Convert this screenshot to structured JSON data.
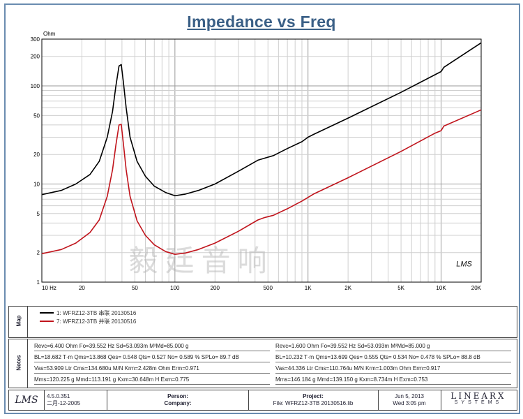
{
  "chart_data": {
    "type": "line",
    "title": "Impedance vs Freq",
    "y_unit": "Ohm",
    "x_scale": "log",
    "y_scale": "log",
    "xlim": [
      10,
      20000
    ],
    "ylim": [
      1,
      300
    ],
    "grid": true,
    "x_ticks": [
      {
        "value": 10,
        "label": "10 Hz"
      },
      {
        "value": 20,
        "label": "20"
      },
      {
        "value": 50,
        "label": "50"
      },
      {
        "value": 100,
        "label": "100"
      },
      {
        "value": 200,
        "label": "200"
      },
      {
        "value": 500,
        "label": "500"
      },
      {
        "value": 1000,
        "label": "1K"
      },
      {
        "value": 2000,
        "label": "2K"
      },
      {
        "value": 5000,
        "label": "5K"
      },
      {
        "value": 10000,
        "label": "10K"
      },
      {
        "value": 20000,
        "label": "20K"
      }
    ],
    "y_ticks": [
      {
        "value": 1,
        "label": "1"
      },
      {
        "value": 2,
        "label": "2"
      },
      {
        "value": 5,
        "label": "5"
      },
      {
        "value": 10,
        "label": "10"
      },
      {
        "value": 20,
        "label": "20"
      },
      {
        "value": 50,
        "label": "50"
      },
      {
        "value": 100,
        "label": "100"
      },
      {
        "value": 200,
        "label": "200"
      },
      {
        "value": 300,
        "label": "300"
      }
    ],
    "series": [
      {
        "name": "1: WFRZ12-3TB 串联 20130516",
        "color": "#000000",
        "points": [
          [
            10,
            7.8
          ],
          [
            14,
            8.6
          ],
          [
            18,
            10.0
          ],
          [
            23,
            12.5
          ],
          [
            27,
            17.0
          ],
          [
            31,
            30.0
          ],
          [
            34,
            55.0
          ],
          [
            36,
            100.0
          ],
          [
            38,
            160.0
          ],
          [
            39.5,
            165.0
          ],
          [
            41,
            110.0
          ],
          [
            43,
            60.0
          ],
          [
            46,
            30.0
          ],
          [
            52,
            17.0
          ],
          [
            60,
            12.0
          ],
          [
            70,
            9.5
          ],
          [
            85,
            8.2
          ],
          [
            100,
            7.6
          ],
          [
            120,
            7.9
          ],
          [
            150,
            8.6
          ],
          [
            200,
            10.0
          ],
          [
            300,
            13.5
          ],
          [
            420,
            17.5
          ],
          [
            470,
            18.3
          ],
          [
            550,
            19.5
          ],
          [
            700,
            23.0
          ],
          [
            900,
            27.0
          ],
          [
            1000,
            30.0
          ],
          [
            1100,
            32.0
          ],
          [
            2000,
            47.0
          ],
          [
            5000,
            86.0
          ],
          [
            9000,
            130.0
          ],
          [
            10000,
            140.0
          ],
          [
            10500,
            155.0
          ],
          [
            20000,
            275.0
          ]
        ]
      },
      {
        "name": "7: WFRZ12-3TB 并联 20130516",
        "color": "#c0141c",
        "points": [
          [
            10,
            1.95
          ],
          [
            14,
            2.15
          ],
          [
            18,
            2.5
          ],
          [
            23,
            3.2
          ],
          [
            27,
            4.3
          ],
          [
            31,
            7.5
          ],
          [
            34,
            14.0
          ],
          [
            36,
            25.0
          ],
          [
            38,
            40.0
          ],
          [
            39.5,
            40.5
          ],
          [
            41,
            26.0
          ],
          [
            43,
            14.0
          ],
          [
            46,
            7.5
          ],
          [
            52,
            4.2
          ],
          [
            60,
            3.0
          ],
          [
            70,
            2.4
          ],
          [
            85,
            2.05
          ],
          [
            100,
            1.92
          ],
          [
            120,
            1.98
          ],
          [
            150,
            2.15
          ],
          [
            200,
            2.5
          ],
          [
            300,
            3.3
          ],
          [
            420,
            4.3
          ],
          [
            470,
            4.55
          ],
          [
            550,
            4.8
          ],
          [
            700,
            5.6
          ],
          [
            900,
            6.7
          ],
          [
            1000,
            7.3
          ],
          [
            1100,
            7.9
          ],
          [
            2000,
            11.6
          ],
          [
            5000,
            21.5
          ],
          [
            9000,
            33.0
          ],
          [
            10000,
            35.0
          ],
          [
            10500,
            39.0
          ],
          [
            20000,
            57.0
          ]
        ]
      }
    ],
    "watermark": "毅廷音响",
    "corner_logo": "LMS"
  },
  "map": {
    "label": "Map",
    "entries": [
      {
        "text": "1: WFRZ12-3TB 串联 20130516",
        "color": "#000000"
      },
      {
        "text": "7: WFRZ12-3TB 并联 20130516",
        "color": "#c0141c"
      }
    ]
  },
  "notes": {
    "label": "Notes",
    "left": [
      "Revc=6.400 Ohm  Fo=39.552 Hz  Sd=53.093m M²Md=85.000 g",
      "BL=18.682 T·m  Qms=13.868  Qes= 0.548  Qts= 0.527  No= 0.589 %  SPLo= 89.7 dB",
      "Vas=53.909 Ltr  Cms=134.680u M/N  Krm=2.428m Ohm  Erm=0.971",
      "Mms=120.225 g  Mmd=113.191 g  Kxm=30.648m H  Exm=0.775"
    ],
    "right": [
      "Revc=1.600 Ohm  Fo=39.552 Hz  Sd=53.093m M²Md=85.000 g",
      "BL=10.232 T·m  Qms=13.699  Qes= 0.555  Qts= 0.534  No= 0.478 %  SPLo= 88.8 dB",
      "Vas=44.336 Ltr  Cms=110.764u M/N  Krm=1.003m Ohm  Erm=0.917",
      "Mms=146.184 g  Mmd=139.150 g  Kxm=8.734m H  Exm=0.753"
    ]
  },
  "footer": {
    "logo": "LMS",
    "version": "4.5.0.351",
    "date_build": "二月-12-2005",
    "person_label": "Person:",
    "company_label": "Company:",
    "project_label": "Project:",
    "file_label": "File: WFRZ12-3TB 20130516.lib",
    "date": "Jun  5, 2013",
    "time": "Wed  3:05 pm",
    "brand": "LINEARX",
    "brand_sub": "SYSTEMS"
  }
}
